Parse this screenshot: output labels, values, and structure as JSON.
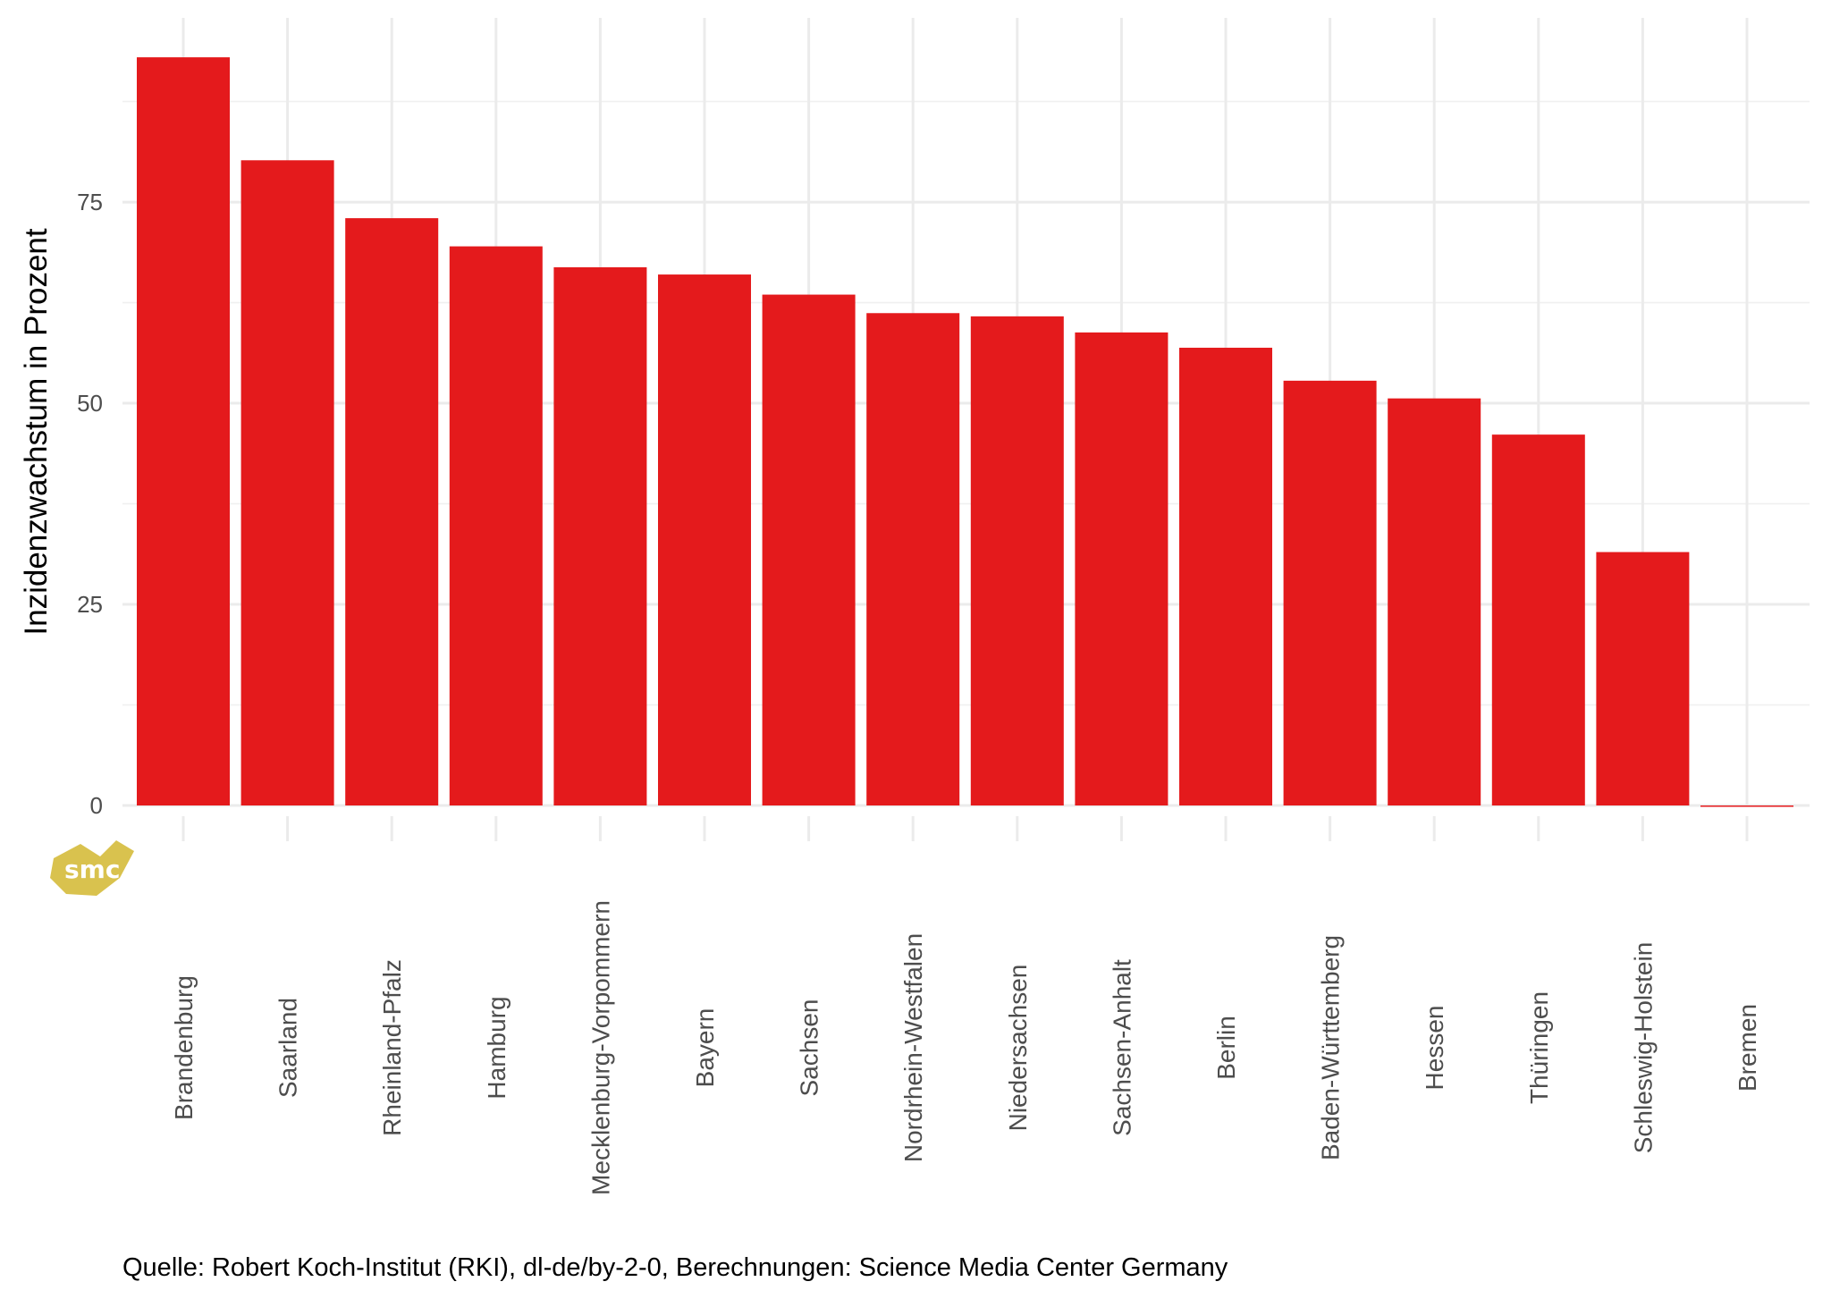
{
  "chart_data": {
    "type": "bar",
    "title": "",
    "xlabel": "",
    "ylabel": "Inzidenzwachstum in Prozent",
    "categories": [
      "Brandenburg",
      "Saarland",
      "Rheinland-Pfalz",
      "Hamburg",
      "Mecklenburg-Vorpommern",
      "Bayern",
      "Sachsen",
      "Nordrhein-Westfalen",
      "Niedersachsen",
      "Sachsen-Anhalt",
      "Berlin",
      "Baden-Württemberg",
      "Hessen",
      "Thüringen",
      "Schleswig-Holstein",
      "Bremen"
    ],
    "values": [
      93.0,
      80.2,
      73.0,
      69.5,
      66.9,
      66.0,
      63.5,
      61.2,
      60.8,
      58.8,
      56.9,
      52.8,
      50.6,
      46.1,
      31.5,
      0
    ],
    "ylim": [
      0,
      97.9
    ],
    "yticks": [
      0,
      25,
      50,
      75
    ],
    "ytick_labels": [
      "0",
      "25",
      "50",
      "75"
    ],
    "grid": true,
    "bar_color": "#e41a1c",
    "x_label_rotation": 90
  },
  "caption": "Quelle: Robert Koch-Institut (RKI), dl-de/by-2-0, Berechnungen: Science Media Center Germany",
  "logo": {
    "text": "smc",
    "color": "#d9c24e"
  }
}
